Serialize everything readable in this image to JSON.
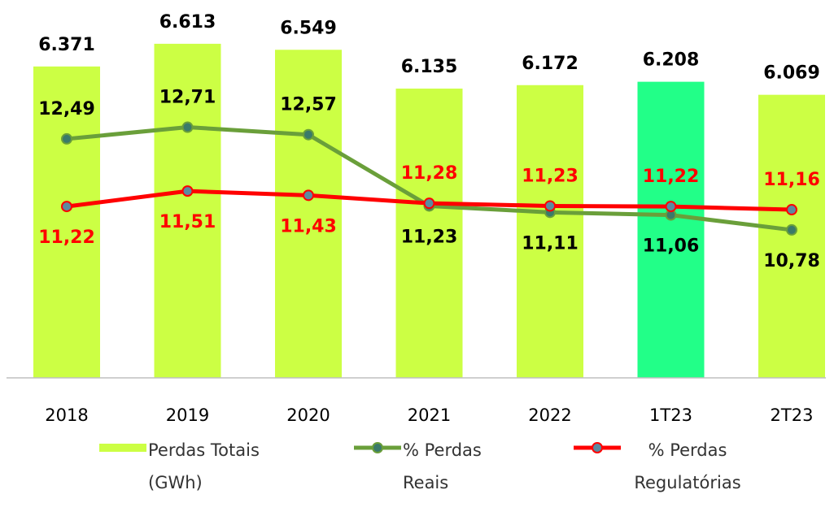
{
  "chart_data": {
    "type": "bar+line",
    "categories": [
      "2018",
      "2019",
      "2020",
      "2021",
      "2022",
      "1T23",
      "2T23"
    ],
    "ylim": [
      3050,
      7080
    ],
    "y2lim": [
      8,
      15.1
    ],
    "series": [
      {
        "name": "Perdas Totais (GWh)",
        "type": "bar",
        "color": "#ccff44",
        "colors": [
          "#ccff44",
          "#ccff44",
          "#ccff44",
          "#ccff44",
          "#ccff44",
          "#22ff88",
          "#ccff44"
        ],
        "values": [
          6371,
          6613,
          6549,
          6135,
          6172,
          6208,
          6069
        ],
        "value_labels": [
          "6.371",
          "6.613",
          "6.549",
          "6.135",
          "6.172",
          "6.208",
          "6.069"
        ]
      },
      {
        "name": "% Perdas Reais",
        "type": "line",
        "axis": "y2",
        "color": "#6a9f3a",
        "marker_color": "#3a7a6a",
        "label_color": "#000000",
        "values": [
          12.49,
          12.71,
          12.57,
          11.23,
          11.11,
          11.06,
          10.78
        ],
        "value_labels": [
          "12,49",
          "12,71",
          "12,57",
          "11,23",
          "11,11",
          "11,06",
          "10,78"
        ]
      },
      {
        "name": "% Perdas Regulatórias",
        "type": "line",
        "axis": "y2",
        "color": "#ff0000",
        "marker_color": "#5b8aa0",
        "label_color": "#ff0000",
        "values": [
          11.22,
          11.51,
          11.43,
          11.28,
          11.23,
          11.22,
          11.16
        ],
        "value_labels": [
          "11,22",
          "11,51",
          "11,43",
          "11,28",
          "11,23",
          "11,22",
          "11,16"
        ]
      }
    ]
  }
}
